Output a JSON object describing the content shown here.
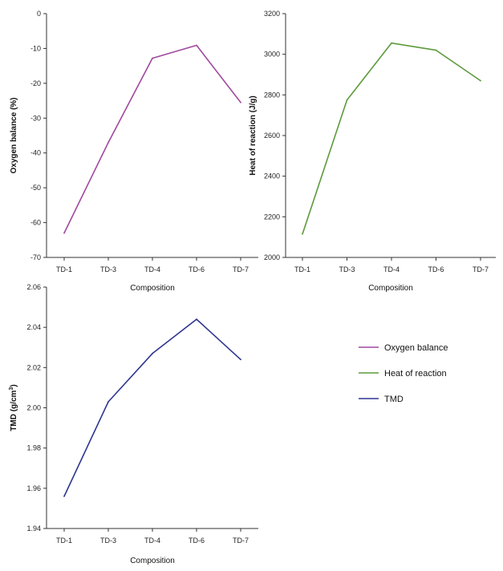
{
  "chart_data": [
    {
      "type": "line",
      "categories": [
        "TD-1",
        "TD-3",
        "TD-4",
        "TD-6",
        "TD-7"
      ],
      "series": [
        {
          "name": "Oxygen balance",
          "values": [
            -63,
            -37,
            -12.8,
            -9.1,
            -25.5
          ],
          "color": "#a0489f"
        }
      ],
      "xlabel": "Composition",
      "ylabel": "Oxygen balance (%)",
      "ylim": [
        -70,
        0
      ],
      "yticks": [
        "0",
        "-10",
        "-20",
        "-30",
        "-40",
        "-50",
        "-60",
        "-70"
      ],
      "grid": false
    },
    {
      "type": "line",
      "categories": [
        "TD-1",
        "TD-3",
        "TD-4",
        "TD-6",
        "TD-7"
      ],
      "series": [
        {
          "name": "Heat of reaction",
          "values": [
            2115,
            2775,
            3055,
            3020,
            2870
          ],
          "color": "#5c9a3c"
        }
      ],
      "xlabel": "Composition",
      "ylabel": "Heat of reaction (J/g)",
      "ylim": [
        2000,
        3200
      ],
      "yticks": [
        "3200",
        "3000",
        "2800",
        "2600",
        "2400",
        "2200",
        "2000"
      ],
      "grid": false
    },
    {
      "type": "line",
      "categories": [
        "TD-1",
        "TD-3",
        "TD-4",
        "TD-6",
        "TD-7"
      ],
      "series": [
        {
          "name": "TMD",
          "values": [
            1.956,
            2.003,
            2.027,
            2.044,
            2.024
          ],
          "color": "#2e3590"
        }
      ],
      "xlabel": "Composition",
      "ylabel_prefix": "TMD (g/cm",
      "ylabel_sup": "3",
      "ylabel_suffix": ")",
      "ylim": [
        1.94,
        2.06
      ],
      "yticks": [
        "2.06",
        "2.04",
        "2.02",
        "2.00",
        "1.98",
        "1.96",
        "1.94"
      ],
      "grid": false
    }
  ],
  "legend": {
    "placement": "right",
    "items": [
      {
        "label": "Oxygen balance",
        "color": "#a0489f"
      },
      {
        "label": "Heat of reaction",
        "color": "#5c9a3c"
      },
      {
        "label": "TMD",
        "color": "#2e3590"
      }
    ]
  }
}
